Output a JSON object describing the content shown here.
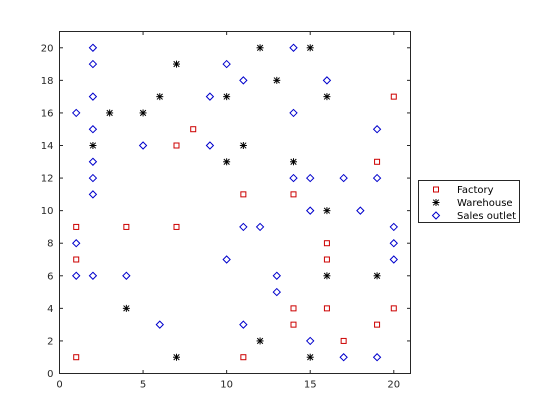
{
  "chart_data": {
    "type": "scatter",
    "title": "",
    "xlabel": "",
    "ylabel": "",
    "xlim": [
      0,
      21
    ],
    "ylim": [
      0,
      21
    ],
    "xticks": [
      0,
      5,
      10,
      15,
      20
    ],
    "yticks": [
      0,
      2,
      4,
      6,
      8,
      10,
      12,
      14,
      16,
      18,
      20
    ],
    "grid": false,
    "legend_position": "outside-right",
    "series": [
      {
        "name": "Factory",
        "marker": "square",
        "color": "#cc0000",
        "points": [
          [
            1,
            1
          ],
          [
            1,
            7
          ],
          [
            1,
            9
          ],
          [
            4,
            9
          ],
          [
            7,
            9
          ],
          [
            7,
            14
          ],
          [
            8,
            15
          ],
          [
            11,
            1
          ],
          [
            11,
            11
          ],
          [
            14,
            3
          ],
          [
            14,
            4
          ],
          [
            14,
            11
          ],
          [
            16,
            4
          ],
          [
            16,
            7
          ],
          [
            16,
            8
          ],
          [
            17,
            2
          ],
          [
            19,
            3
          ],
          [
            19,
            13
          ],
          [
            20,
            4
          ],
          [
            20,
            17
          ]
        ]
      },
      {
        "name": "Warehouse",
        "marker": "asterisk",
        "color": "#000000",
        "points": [
          [
            2,
            14
          ],
          [
            3,
            16
          ],
          [
            4,
            4
          ],
          [
            5,
            16
          ],
          [
            6,
            17
          ],
          [
            7,
            1
          ],
          [
            7,
            19
          ],
          [
            10,
            13
          ],
          [
            10,
            17
          ],
          [
            11,
            14
          ],
          [
            12,
            2
          ],
          [
            12,
            20
          ],
          [
            13,
            18
          ],
          [
            14,
            13
          ],
          [
            15,
            1
          ],
          [
            15,
            20
          ],
          [
            16,
            6
          ],
          [
            16,
            10
          ],
          [
            16,
            17
          ],
          [
            19,
            6
          ]
        ]
      },
      {
        "name": "Sales outlet",
        "marker": "diamond",
        "color": "#0000cc",
        "points": [
          [
            1,
            6
          ],
          [
            1,
            8
          ],
          [
            1,
            16
          ],
          [
            2,
            6
          ],
          [
            2,
            11
          ],
          [
            2,
            12
          ],
          [
            2,
            13
          ],
          [
            2,
            15
          ],
          [
            2,
            17
          ],
          [
            2,
            19
          ],
          [
            2,
            20
          ],
          [
            4,
            6
          ],
          [
            5,
            14
          ],
          [
            6,
            3
          ],
          [
            9,
            14
          ],
          [
            9,
            17
          ],
          [
            10,
            7
          ],
          [
            10,
            19
          ],
          [
            11,
            3
          ],
          [
            11,
            9
          ],
          [
            11,
            18
          ],
          [
            12,
            9
          ],
          [
            13,
            5
          ],
          [
            13,
            6
          ],
          [
            14,
            12
          ],
          [
            14,
            16
          ],
          [
            14,
            20
          ],
          [
            15,
            2
          ],
          [
            15,
            10
          ],
          [
            15,
            12
          ],
          [
            16,
            18
          ],
          [
            17,
            1
          ],
          [
            17,
            12
          ],
          [
            18,
            10
          ],
          [
            19,
            1
          ],
          [
            19,
            12
          ],
          [
            19,
            15
          ],
          [
            20,
            7
          ],
          [
            20,
            8
          ],
          [
            20,
            9
          ]
        ]
      }
    ]
  }
}
